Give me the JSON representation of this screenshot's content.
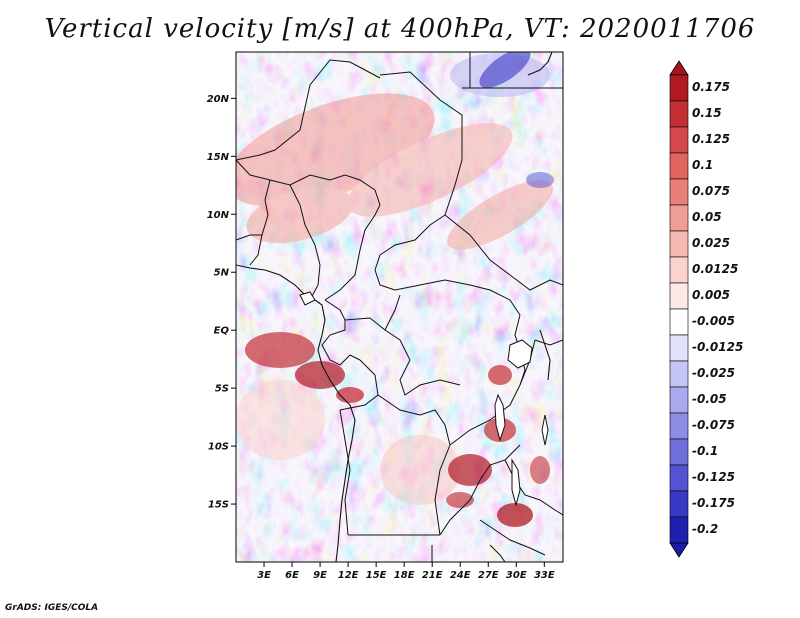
{
  "title": "Vertical velocity [m/s] at 400hPa, VT: 2020011706",
  "footer": "GrADS: IGES/COLA",
  "map": {
    "region": "Central Africa",
    "lon_range": [
      0,
      35
    ],
    "lat_range": [
      -20,
      24
    ],
    "lat_ticks": [
      {
        "value": 20,
        "label": "20N"
      },
      {
        "value": 15,
        "label": "15N"
      },
      {
        "value": 10,
        "label": "10N"
      },
      {
        "value": 5,
        "label": "5N"
      },
      {
        "value": 0,
        "label": "EQ"
      },
      {
        "value": -5,
        "label": "5S"
      },
      {
        "value": -10,
        "label": "10S"
      },
      {
        "value": -15,
        "label": "15S"
      }
    ],
    "lon_ticks": [
      {
        "value": 3,
        "label": "3E"
      },
      {
        "value": 6,
        "label": "6E"
      },
      {
        "value": 9,
        "label": "9E"
      },
      {
        "value": 12,
        "label": "12E"
      },
      {
        "value": 15,
        "label": "15E"
      },
      {
        "value": 18,
        "label": "18E"
      },
      {
        "value": 21,
        "label": "21E"
      },
      {
        "value": 24,
        "label": "24E"
      },
      {
        "value": 27,
        "label": "27E"
      },
      {
        "value": 30,
        "label": "30E"
      },
      {
        "value": 33,
        "label": "33E"
      }
    ]
  },
  "colorbar": {
    "levels": [
      {
        "label": "0.175",
        "color": "#b01a22"
      },
      {
        "label": "0.15",
        "color": "#c42f35"
      },
      {
        "label": "0.125",
        "color": "#d4484a"
      },
      {
        "label": "0.1",
        "color": "#e0645f"
      },
      {
        "label": "0.075",
        "color": "#e98078"
      },
      {
        "label": "0.05",
        "color": "#f09d95"
      },
      {
        "label": "0.025",
        "color": "#f6bab3"
      },
      {
        "label": "0.0125",
        "color": "#fad3cf"
      },
      {
        "label": "0.005",
        "color": "#fde9e7"
      },
      {
        "label": "-0.005",
        "color": "#ffffff"
      },
      {
        "label": "-0.0125",
        "color": "#e2e2fb"
      },
      {
        "label": "-0.025",
        "color": "#c6c6f4"
      },
      {
        "label": "-0.05",
        "color": "#a9a9ee"
      },
      {
        "label": "-0.075",
        "color": "#8d8de6"
      },
      {
        "label": "-0.1",
        "color": "#7070dd"
      },
      {
        "label": "-0.125",
        "color": "#5454d2"
      },
      {
        "label": "-0.175",
        "color": "#3838c4"
      },
      {
        "label": "-0.2",
        "color": "#2020b0"
      }
    ],
    "top_color": "#a8141c",
    "bottom_color": "#1a1aa6"
  }
}
